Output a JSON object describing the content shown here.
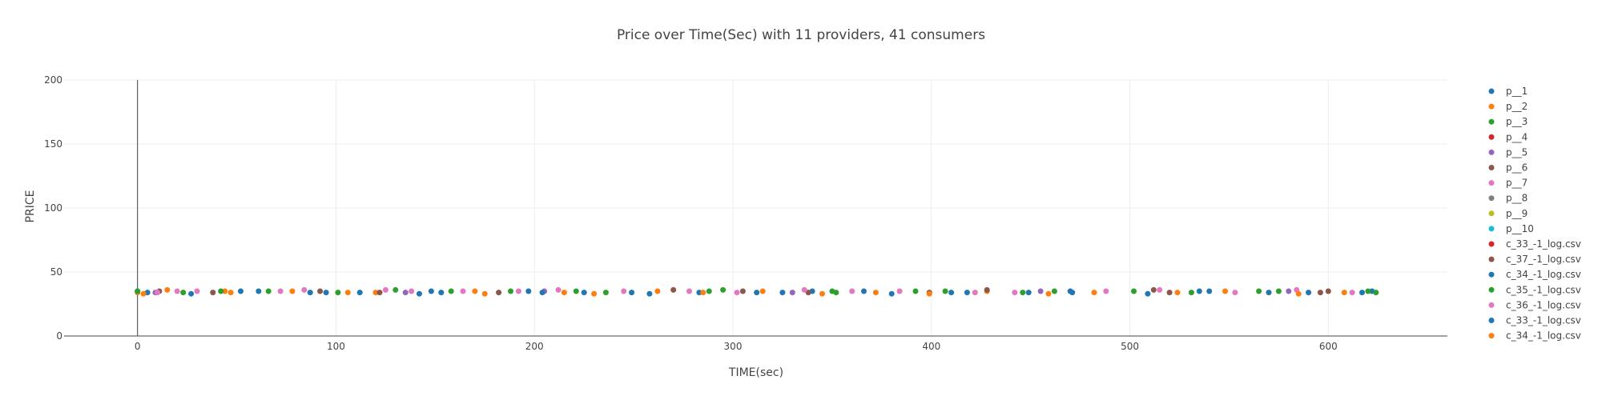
{
  "chart_data": {
    "type": "scatter",
    "title": "Price over Time(Sec) with 11 providers, 41 consumers",
    "xlabel": "TIME(sec)",
    "ylabel": "PRICE",
    "xlim": [
      -37,
      660
    ],
    "ylim": [
      0,
      200
    ],
    "xticks": [
      0,
      100,
      200,
      300,
      400,
      500,
      600
    ],
    "yticks": [
      0,
      50,
      100,
      150,
      200
    ],
    "grid": true,
    "legend_position": "right",
    "series": [
      {
        "name": "p__1",
        "color": "#1f77b4",
        "x": [
          0,
          5,
          52,
          95,
          148,
          225,
          283,
          340,
          410,
          470,
          535,
          590,
          622
        ],
        "y": [
          35,
          34,
          35,
          34,
          35,
          34,
          34,
          35,
          34,
          35,
          35,
          34,
          35
        ]
      },
      {
        "name": "p__2",
        "color": "#ff7f0e",
        "x": [
          0,
          15,
          44,
          78,
          120,
          170,
          215,
          262,
          315,
          372,
          428,
          482,
          548,
          608
        ],
        "y": [
          34,
          36,
          35,
          35,
          34,
          35,
          34,
          35,
          35,
          34,
          35,
          34,
          35,
          34
        ]
      },
      {
        "name": "p__3",
        "color": "#2ca02c",
        "x": [
          0,
          23,
          66,
          130,
          188,
          236,
          295,
          350,
          392,
          446,
          502,
          565,
          624
        ],
        "y": [
          35,
          34,
          35,
          36,
          35,
          34,
          36,
          35,
          35,
          34,
          35,
          35,
          34
        ]
      },
      {
        "name": "p__4",
        "color": "#d62728",
        "x": [],
        "y": []
      },
      {
        "name": "p__5",
        "color": "#9467bd",
        "x": [
          9,
          135,
          205,
          330,
          455,
          580
        ],
        "y": [
          34,
          34,
          35,
          34,
          35,
          35
        ]
      },
      {
        "name": "p__6",
        "color": "#8c564b",
        "x": [
          11,
          122,
          270,
          338,
          428,
          512,
          596
        ],
        "y": [
          35,
          34,
          36,
          34,
          36,
          36,
          34
        ]
      },
      {
        "name": "p__7",
        "color": "#e377c2",
        "x": [
          10,
          30,
          72,
          125,
          164,
          212,
          278,
          336,
          384,
          442,
          515,
          584
        ],
        "y": [
          34,
          35,
          35,
          36,
          35,
          36,
          35,
          36,
          35,
          34,
          36,
          36
        ]
      },
      {
        "name": "p__8",
        "color": "#7f7f7f",
        "x": [],
        "y": []
      },
      {
        "name": "p__9",
        "color": "#bcbd22",
        "x": [],
        "y": []
      },
      {
        "name": "p__10",
        "color": "#17becf",
        "x": [],
        "y": []
      },
      {
        "name": "c_33_-1_log.csv",
        "color": "#d62728",
        "x": [],
        "y": []
      },
      {
        "name": "c_37_-1_log.csv",
        "color": "#8c564b",
        "x": [
          38,
          92,
          182,
          305,
          399,
          520,
          600
        ],
        "y": [
          34,
          35,
          34,
          35,
          34,
          34,
          35
        ]
      },
      {
        "name": "c_34_-1_log.csv",
        "color": "#1f77b4",
        "x": [
          61,
          112,
          142,
          197,
          249,
          312,
          366,
          418,
          471,
          540,
          617
        ],
        "y": [
          35,
          34,
          33,
          35,
          34,
          34,
          35,
          34,
          34,
          35,
          34
        ]
      },
      {
        "name": "c_35_-1_log.csv",
        "color": "#2ca02c",
        "x": [
          42,
          101,
          158,
          221,
          288,
          352,
          407,
          462,
          531,
          575,
          620
        ],
        "y": [
          35,
          34,
          35,
          35,
          35,
          34,
          35,
          35,
          34,
          35,
          35
        ]
      },
      {
        "name": "c_36_-1_log.csv",
        "color": "#e377c2",
        "x": [
          20,
          84,
          138,
          192,
          245,
          302,
          360,
          422,
          488,
          553,
          612
        ],
        "y": [
          35,
          36,
          35,
          35,
          35,
          34,
          35,
          34,
          35,
          34,
          34
        ]
      },
      {
        "name": "c_33_-1_log.csv",
        "color": "#1f77b4",
        "x": [
          27,
          87,
          153,
          204,
          258,
          325,
          380,
          449,
          509,
          570
        ],
        "y": [
          33,
          34,
          34,
          34,
          33,
          34,
          33,
          34,
          33,
          34
        ]
      },
      {
        "name": "c_34_-1_log.csv",
        "color": "#ff7f0e",
        "x": [
          3,
          47,
          106,
          175,
          230,
          285,
          345,
          399,
          459,
          524,
          585
        ],
        "y": [
          33,
          34,
          34,
          33,
          33,
          34,
          33,
          33,
          33,
          34,
          33
        ]
      }
    ]
  }
}
